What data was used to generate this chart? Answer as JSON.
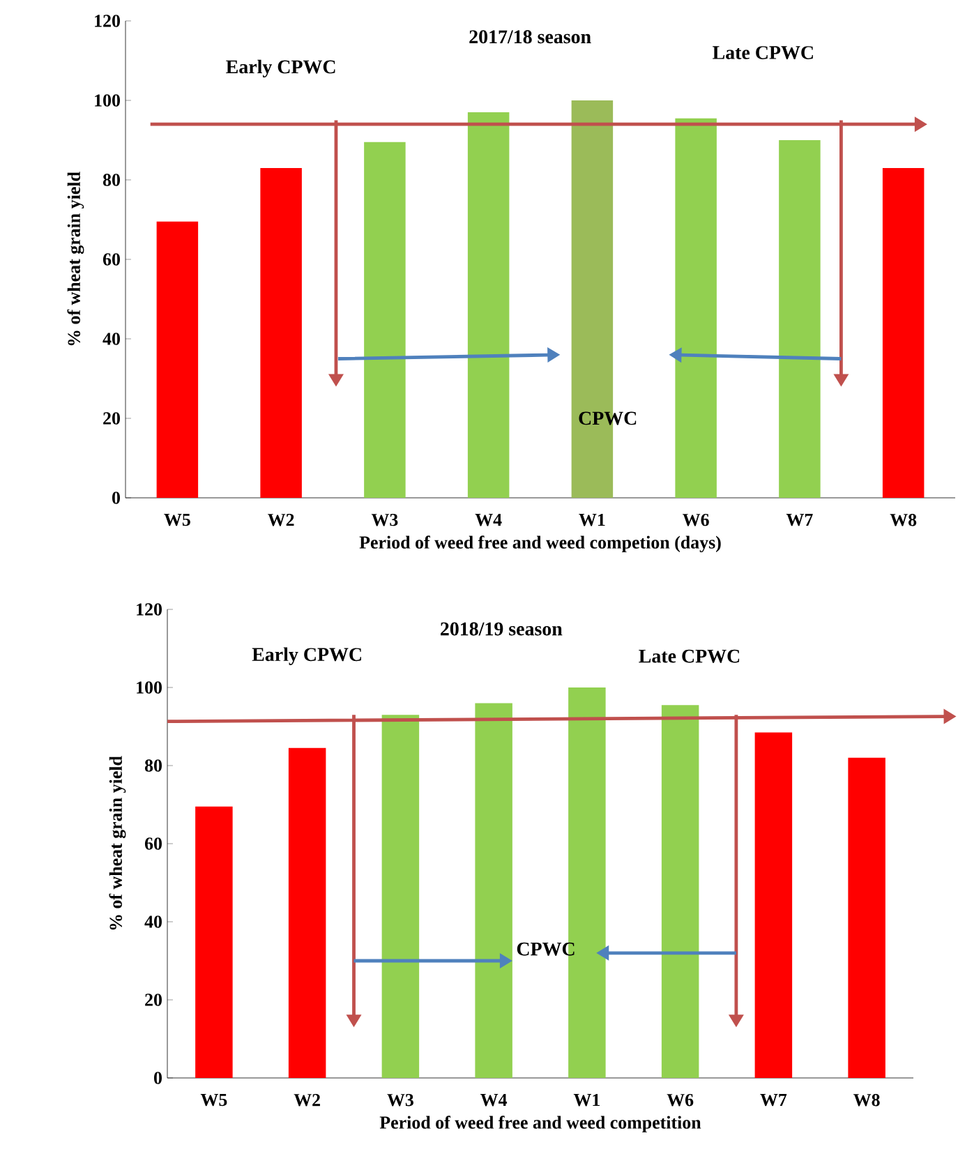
{
  "chart_data": [
    {
      "type": "bar",
      "title": "2017/18 season",
      "xlabel": "Period of weed free and weed competion (days)",
      "ylabel": "% of wheat grain yield",
      "categories": [
        "W5",
        "W2",
        "W3",
        "W4",
        "W1",
        "W6",
        "W7",
        "W8"
      ],
      "values": [
        69.5,
        83,
        89.5,
        97,
        100,
        95.5,
        90,
        83
      ],
      "colors": [
        "#ff0000",
        "#ff0000",
        "#92d050",
        "#92d050",
        "#9bbb59",
        "#92d050",
        "#92d050",
        "#ff0000"
      ],
      "ylim": [
        0,
        120
      ],
      "yticks": [
        0,
        20,
        40,
        60,
        80,
        100,
        120
      ],
      "annotations": [
        "Early CPWC",
        "Late CPWC",
        "CPWC"
      ]
    },
    {
      "type": "bar",
      "title": "2018/19 season",
      "xlabel": "Period of weed free and weed competition",
      "ylabel": "% of wheat grain yield",
      "categories": [
        "W5",
        "W2",
        "W3",
        "W4",
        "W1",
        "W6",
        "W7",
        "W8"
      ],
      "values": [
        69.5,
        84.5,
        93,
        96,
        100,
        95.5,
        88.5,
        82
      ],
      "colors": [
        "#ff0000",
        "#ff0000",
        "#92d050",
        "#92d050",
        "#92d050",
        "#92d050",
        "#ff0000",
        "#ff0000"
      ],
      "ylim": [
        0,
        120
      ],
      "yticks": [
        0,
        20,
        40,
        60,
        80,
        100,
        120
      ],
      "annotations": [
        "Early CPWC",
        "Late CPWC",
        "CPWC"
      ]
    }
  ]
}
